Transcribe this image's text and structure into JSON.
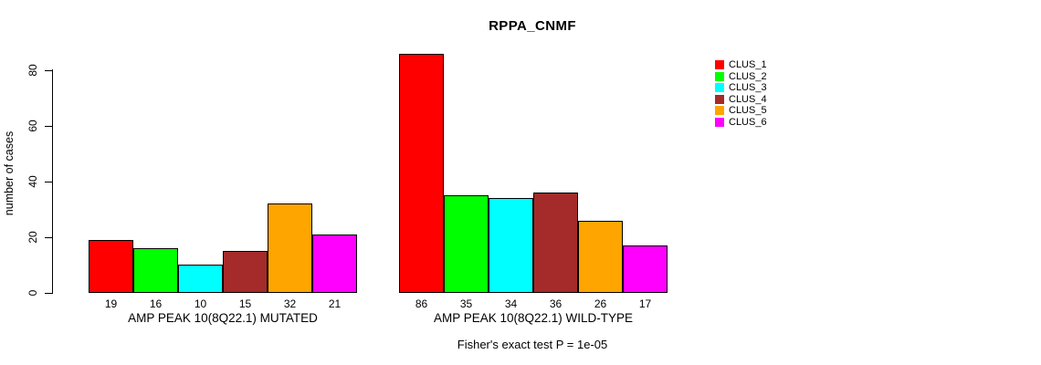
{
  "chart_data": {
    "type": "bar",
    "title": "RPPA_CNMF",
    "ylabel": "number of cases",
    "annotation": "Fisher's exact test P = 1e-05",
    "ylim": [
      0,
      88
    ],
    "yticks": [
      0,
      20,
      40,
      60,
      80
    ],
    "grid": false,
    "legend_position": "top-right-inside",
    "legend": [
      {
        "label": "CLUS_1",
        "color": "#FF0000"
      },
      {
        "label": "CLUS_2",
        "color": "#00FF00"
      },
      {
        "label": "CLUS_3",
        "color": "#00FFFF"
      },
      {
        "label": "CLUS_4",
        "color": "#A52A2A"
      },
      {
        "label": "CLUS_5",
        "color": "#FFA500"
      },
      {
        "label": "CLUS_6",
        "color": "#FF00FF"
      }
    ],
    "groups": [
      {
        "label": "AMP PEAK 10(8Q22.1) MUTATED",
        "values": [
          19,
          16,
          10,
          15,
          32,
          21
        ]
      },
      {
        "label": "AMP PEAK 10(8Q22.1) WILD-TYPE",
        "values": [
          86,
          35,
          34,
          36,
          26,
          17
        ]
      }
    ]
  }
}
